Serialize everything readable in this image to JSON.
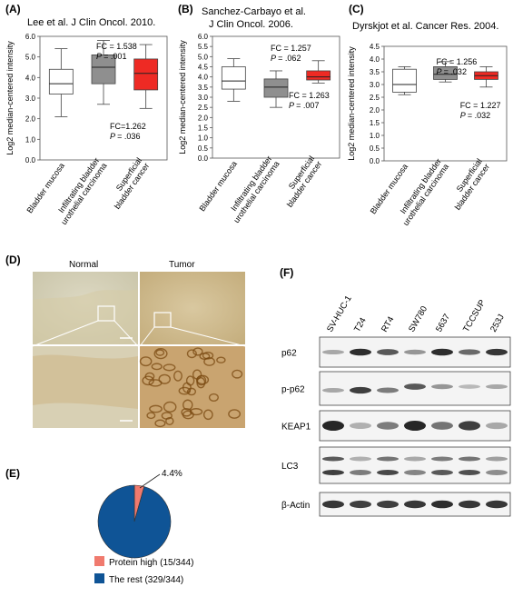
{
  "panel_letters": {
    "a": "(A)",
    "b": "(B)",
    "c": "(C)",
    "d": "(D)",
    "e": "(E)",
    "f": "(F)"
  },
  "chart_data": [
    {
      "type": "box",
      "title": "Lee et al. J Clin Oncol. 2010.",
      "ylabel": "Log2 median-centered intensity",
      "ylim": [
        0,
        6
      ],
      "yticks": [
        "0.0",
        "1.0",
        "2.0",
        "3.0",
        "4.0",
        "5.0",
        "6.0"
      ],
      "categories": [
        "Bladder mucosa",
        "Infiltrating bladder urothelial carcinoma",
        "Superficial bladder cancer"
      ],
      "boxes": [
        {
          "whisker_low": 2.1,
          "q1": 3.2,
          "median": 3.7,
          "q3": 4.4,
          "whisker_high": 5.4,
          "fill": "#ffffff"
        },
        {
          "whisker_low": 2.7,
          "q1": 3.7,
          "median": 4.5,
          "q3": 5.1,
          "whisker_high": 5.8,
          "fill": "#8f8f8f"
        },
        {
          "whisker_low": 2.5,
          "q1": 3.4,
          "median": 4.2,
          "q3": 4.9,
          "whisker_high": 5.6,
          "fill": "#ee2a24"
        }
      ],
      "annotations": [
        {
          "fc": "FC = 1.538",
          "p": "= .001"
        },
        {
          "fc": "FC=1.262",
          "p": "= .036"
        }
      ]
    },
    {
      "type": "box",
      "title": "Sanchez-Carbayo et al. J Clin Oncol. 2006.",
      "ylabel": "Log2 median-centered intensity",
      "ylim": [
        0,
        6
      ],
      "yticks": [
        "0.0",
        "0.5",
        "1.0",
        "1.5",
        "2.0",
        "2.5",
        "3.0",
        "3.5",
        "4.0",
        "4.5",
        "5.0",
        "5.5",
        "6.0"
      ],
      "categories": [
        "Bladder mucosa",
        "Infiltrating bladder urothelial carcinoma",
        "Superficial bladder cancer"
      ],
      "boxes": [
        {
          "whisker_low": 2.8,
          "q1": 3.4,
          "median": 3.8,
          "q3": 4.5,
          "whisker_high": 4.9,
          "fill": "#ffffff"
        },
        {
          "whisker_low": 2.5,
          "q1": 3.0,
          "median": 3.5,
          "q3": 3.9,
          "whisker_high": 4.3,
          "fill": "#8f8f8f"
        },
        {
          "whisker_low": 3.7,
          "q1": 3.85,
          "median": 4.0,
          "q3": 4.3,
          "whisker_high": 4.8,
          "fill": "#ee2a24"
        }
      ],
      "annotations": [
        {
          "fc": "FC = 1.257",
          "p": "= .062"
        },
        {
          "fc": "FC = 1.263",
          "p": "= .007"
        }
      ]
    },
    {
      "type": "box",
      "title": "Dyrskjot et al. Cancer Res. 2004.",
      "ylabel": "Log2 median-centered intensity",
      "ylim": [
        0,
        4.5
      ],
      "yticks": [
        "0.0",
        "0.5",
        "1.0",
        "1.5",
        "2.0",
        "2.5",
        "3.0",
        "3.5",
        "4.0",
        "4.5"
      ],
      "categories": [
        "Bladder mucosa",
        "Infiltrating bladder urothelial carcinoma",
        "Superficial bladder cancer"
      ],
      "boxes": [
        {
          "whisker_low": 2.6,
          "q1": 2.7,
          "median": 3.0,
          "q3": 3.6,
          "whisker_high": 3.7,
          "fill": "#ffffff"
        },
        {
          "whisker_low": 3.1,
          "q1": 3.2,
          "median": 3.4,
          "q3": 3.7,
          "whisker_high": 3.9,
          "fill": "#8f8f8f"
        },
        {
          "whisker_low": 2.9,
          "q1": 3.2,
          "median": 3.35,
          "q3": 3.5,
          "whisker_high": 3.7,
          "fill": "#ee2a24"
        }
      ],
      "annotations": [
        {
          "fc": "FC = 1.256",
          "p": "= .032"
        },
        {
          "fc": "FC = 1.227",
          "p": "= .032"
        }
      ]
    },
    {
      "type": "pie",
      "labels": [
        "Protein high (15/344)",
        "The rest (329/344)"
      ],
      "values": [
        15,
        329
      ],
      "colors": [
        "#f07a6e",
        "#0f5496"
      ],
      "annotation": "4.4%"
    }
  ],
  "p_symbol": "P",
  "micrographs": {
    "normal_label": "Normal",
    "tumor_label": "Tumor"
  },
  "blot": {
    "lanes": [
      "SV-HUC-1",
      "T24",
      "RT4",
      "SW780",
      "5637",
      "TCCSUP",
      "253J"
    ],
    "proteins": [
      "p62",
      "p-p62",
      "KEAP1",
      "LC3",
      "β-Actin"
    ],
    "colors": {
      "band": "#1a1a1a"
    }
  }
}
